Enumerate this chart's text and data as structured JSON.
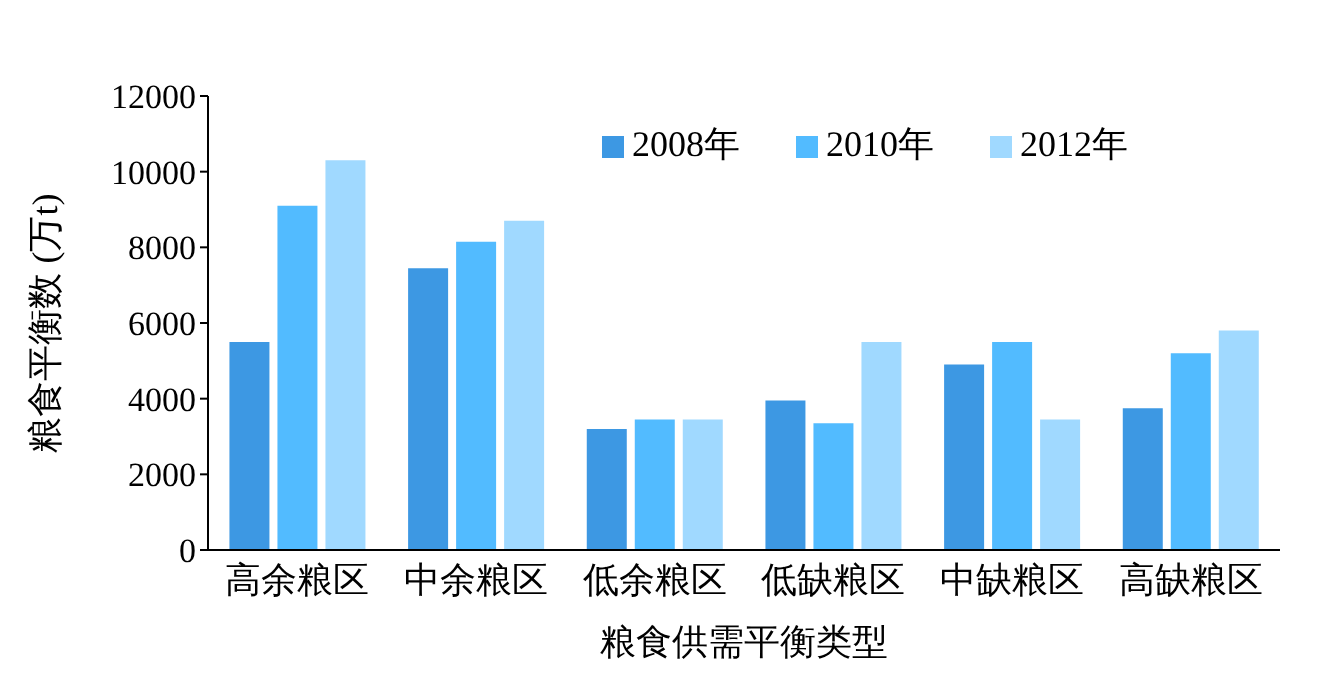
{
  "chart_data": {
    "type": "bar",
    "xlabel": "粮食供需平衡类型",
    "ylabel": "粮食平衡数 (万t)",
    "categories": [
      "高余粮区",
      "中余粮区",
      "低余粮区",
      "低缺粮区",
      "中缺粮区",
      "高缺粮区"
    ],
    "series": [
      {
        "name": "2008年",
        "color": "#3d98e3",
        "values": [
          5500,
          7450,
          3200,
          3950,
          4900,
          3750
        ]
      },
      {
        "name": "2010年",
        "color": "#52bbff",
        "values": [
          9100,
          8150,
          3450,
          3350,
          5500,
          5200
        ]
      },
      {
        "name": "2012年",
        "color": "#a0d9ff",
        "values": [
          10300,
          8700,
          3450,
          5500,
          3450,
          5800
        ]
      }
    ],
    "ylim": [
      0,
      12000
    ],
    "yticks": [
      0,
      2000,
      4000,
      6000,
      8000,
      10000,
      12000
    ],
    "grid": false,
    "legend": "top right"
  }
}
